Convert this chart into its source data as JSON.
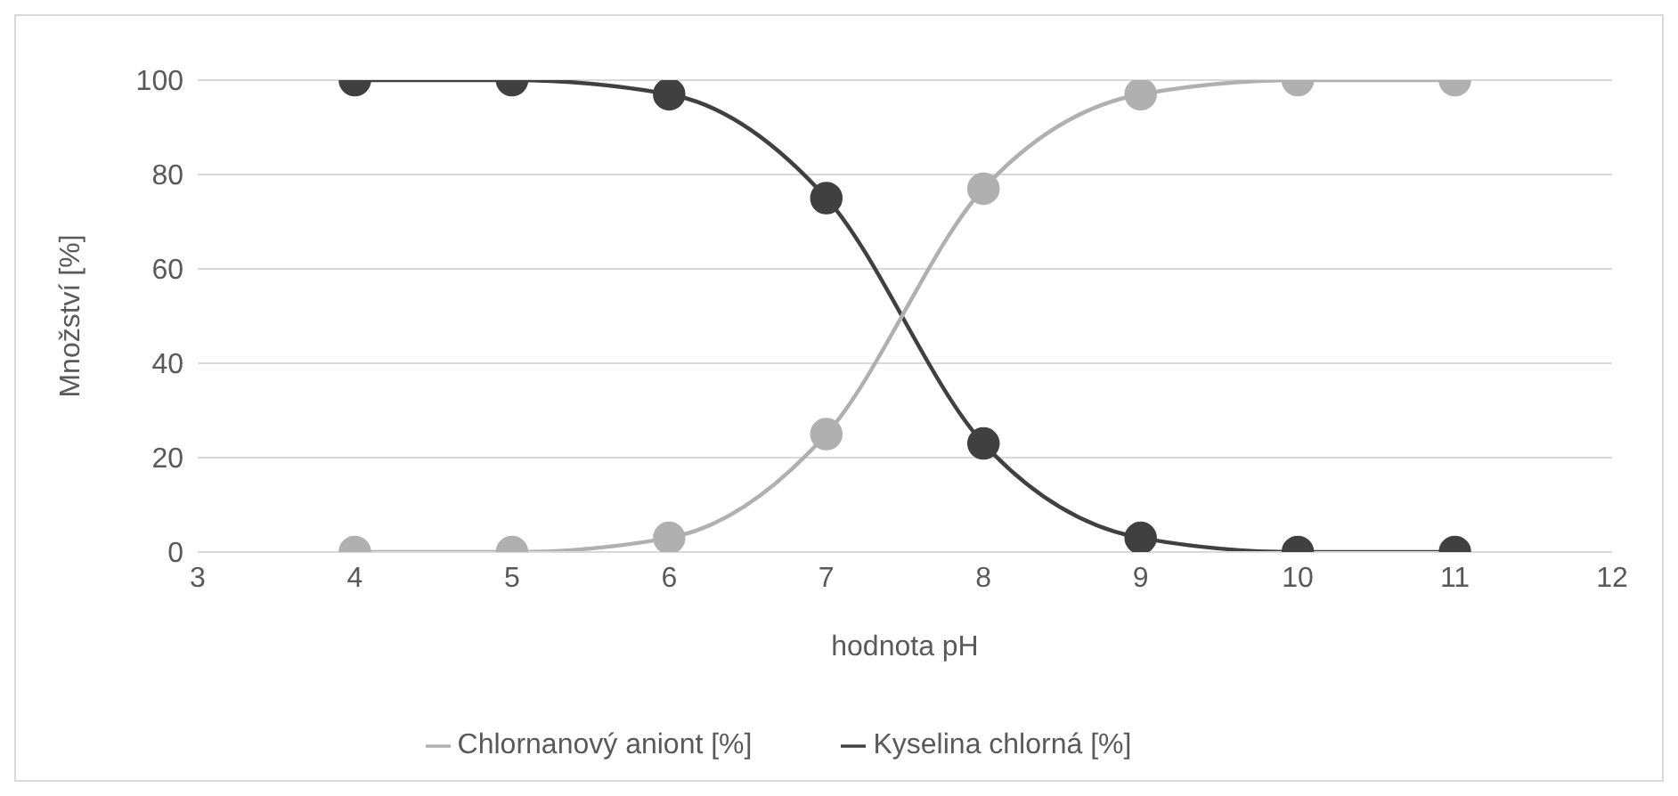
{
  "chart_data": {
    "type": "line",
    "xlabel": "hodnota pH",
    "ylabel": "Množství [%]",
    "x": [
      4,
      5,
      6,
      7,
      8,
      9,
      10,
      11
    ],
    "series": [
      {
        "name": "Kyselina chlorná [%]",
        "color": "#404040",
        "values": [
          100,
          100,
          97,
          75,
          23,
          3,
          0,
          0
        ]
      },
      {
        "name": "Chlornanový aniont [%]",
        "color": "#b0b0b0",
        "values": [
          0,
          0,
          3,
          25,
          77,
          97,
          100,
          100
        ]
      }
    ],
    "xlim": [
      3,
      12
    ],
    "xticks": [
      3,
      4,
      5,
      6,
      7,
      8,
      9,
      10,
      11,
      12
    ],
    "ylim": [
      0,
      100
    ],
    "yticks": [
      0,
      20,
      40,
      60,
      80,
      100
    ],
    "grid": "y",
    "legend": "bottom",
    "marker": "circle",
    "line_style": "solid"
  }
}
